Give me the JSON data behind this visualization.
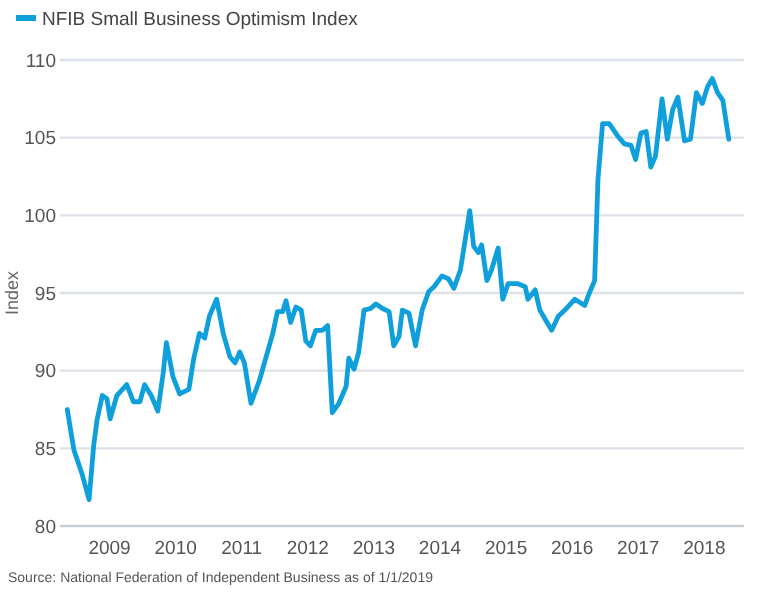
{
  "chart_data": {
    "type": "line",
    "ylabel": "Index",
    "annotations": [
      "Source: National Federation of Independent Business as of 1/1/2019"
    ],
    "xlim": [
      2008.75,
      2019.1
    ],
    "xticks": [
      {
        "value": 2009.5,
        "label": "2009"
      },
      {
        "value": 2010.5,
        "label": "2010"
      },
      {
        "value": 2011.5,
        "label": "2011"
      },
      {
        "value": 2012.5,
        "label": "2012"
      },
      {
        "value": 2013.5,
        "label": "2013"
      },
      {
        "value": 2014.5,
        "label": "2014"
      },
      {
        "value": 2015.5,
        "label": "2015"
      },
      {
        "value": 2016.5,
        "label": "2016"
      },
      {
        "value": 2017.5,
        "label": "2017"
      },
      {
        "value": 2018.5,
        "label": "2018"
      }
    ],
    "ylim": [
      80,
      110
    ],
    "yticks": [
      80,
      85,
      90,
      95,
      100,
      105,
      110
    ],
    "grid": "y",
    "legend": "top left",
    "line_style": "solid",
    "series": [
      {
        "name": "NFIB Small Business Optimism Index",
        "color": "#0fa0dc",
        "x": [
          2008.86,
          2008.96,
          2009.08,
          2009.19,
          2009.26,
          2009.31,
          2009.39,
          2009.46,
          2009.51,
          2009.61,
          2009.76,
          2009.86,
          2009.96,
          2010.03,
          2010.13,
          2010.23,
          2010.31,
          2010.36,
          2010.46,
          2010.56,
          2010.7,
          2010.77,
          2010.86,
          2010.94,
          2011.01,
          2011.12,
          2011.22,
          2011.32,
          2011.4,
          2011.47,
          2011.54,
          2011.64,
          2011.77,
          2011.87,
          2011.97,
          2012.04,
          2012.12,
          2012.17,
          2012.24,
          2012.32,
          2012.4,
          2012.47,
          2012.54,
          2012.62,
          2012.72,
          2012.8,
          2012.87,
          2012.97,
          2013.08,
          2013.12,
          2013.2,
          2013.27,
          2013.35,
          2013.45,
          2013.53,
          2013.63,
          2013.73,
          2013.8,
          2013.88,
          2013.93,
          2014.03,
          2014.13,
          2014.23,
          2014.33,
          2014.41,
          2014.53,
          2014.63,
          2014.71,
          2014.81,
          2014.88,
          2014.95,
          2015.01,
          2015.08,
          2015.13,
          2015.21,
          2015.28,
          2015.38,
          2015.45,
          2015.53,
          2015.68,
          2015.79,
          2015.83,
          2015.94,
          2016.01,
          2016.12,
          2016.19,
          2016.29,
          2016.39,
          2016.54,
          2016.69,
          2016.76,
          2016.84,
          2016.89,
          2016.96,
          2017.06,
          2017.19,
          2017.29,
          2017.39,
          2017.46,
          2017.54,
          2017.62,
          2017.69,
          2017.76,
          2017.86,
          2017.94,
          2018.02,
          2018.1,
          2018.2,
          2018.29,
          2018.38,
          2018.47,
          2018.55,
          2018.62,
          2018.7,
          2018.78,
          2018.87
        ],
        "values": [
          87.5,
          84.9,
          83.4,
          81.7,
          85.2,
          86.8,
          88.4,
          88.2,
          86.9,
          88.4,
          89.1,
          88.0,
          88.0,
          89.1,
          88.4,
          87.4,
          89.8,
          91.8,
          89.6,
          88.5,
          88.8,
          90.7,
          92.4,
          92.1,
          93.5,
          94.6,
          92.4,
          90.9,
          90.5,
          91.2,
          90.5,
          87.9,
          89.4,
          90.9,
          92.4,
          93.8,
          93.8,
          94.5,
          93.1,
          94.1,
          93.9,
          91.9,
          91.6,
          92.6,
          92.6,
          92.9,
          87.3,
          87.9,
          89.0,
          90.8,
          90.1,
          91.2,
          93.9,
          94.0,
          94.3,
          94.0,
          93.8,
          91.6,
          92.2,
          93.9,
          93.7,
          91.6,
          93.9,
          95.1,
          95.4,
          96.1,
          95.9,
          95.3,
          96.5,
          98.4,
          100.3,
          98.0,
          97.6,
          98.1,
          95.8,
          96.5,
          97.9,
          94.6,
          95.6,
          95.6,
          95.4,
          94.6,
          95.2,
          93.9,
          93.1,
          92.6,
          93.5,
          93.9,
          94.6,
          94.2,
          95.0,
          95.8,
          102.3,
          105.9,
          105.9,
          105.1,
          104.6,
          104.5,
          103.6,
          105.3,
          105.4,
          103.1,
          103.8,
          107.5,
          104.9,
          106.8,
          107.6,
          104.8,
          104.9,
          107.9,
          107.2,
          108.3,
          108.8,
          107.9,
          107.4,
          104.9
        ]
      }
    ]
  }
}
